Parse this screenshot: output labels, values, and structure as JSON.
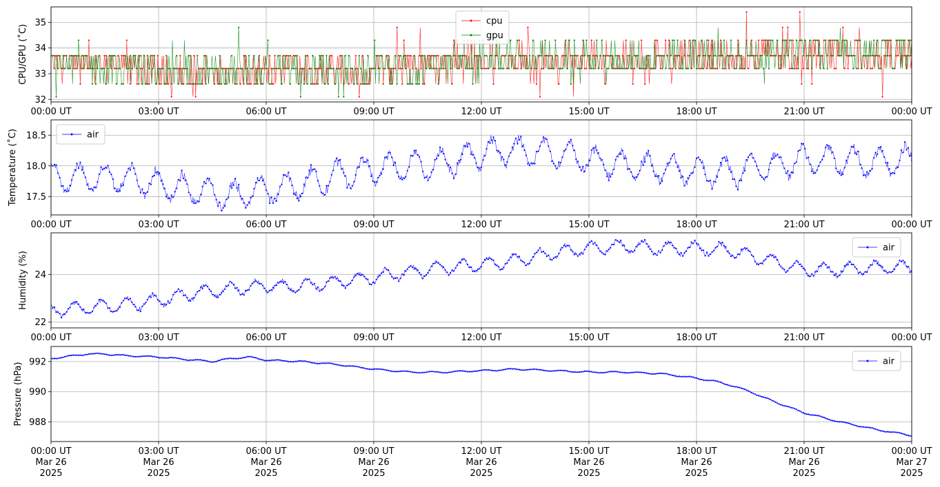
{
  "chart_data": [
    {
      "type": "line",
      "ylabel": "CPU/GPU (˚C)",
      "xlim": [
        "2025-03-26 00:00",
        "2025-03-27 00:00"
      ],
      "ylim": [
        31.9,
        35.6
      ],
      "yticks": [
        32,
        33,
        34,
        35
      ],
      "xtick_labels": [
        "00:00 UT",
        "03:00 UT",
        "06:00 UT",
        "09:00 UT",
        "12:00 UT",
        "15:00 UT",
        "18:00 UT",
        "21:00 UT",
        "00:00 UT"
      ],
      "grid": true,
      "legend_position": "top-center",
      "series": [
        {
          "name": "cpu",
          "color": "#ff0000",
          "x_hours": [
            0,
            1,
            2,
            3,
            4,
            5,
            6,
            7,
            8,
            9,
            10,
            11,
            12,
            13,
            14,
            15,
            16,
            17,
            18,
            19,
            20,
            21,
            22,
            23,
            24
          ],
          "values": [
            33.5,
            33.4,
            33.2,
            33.0,
            32.9,
            33.0,
            33.1,
            33.1,
            33.1,
            33.1,
            33.3,
            33.4,
            33.5,
            33.5,
            33.4,
            33.4,
            33.5,
            33.5,
            33.6,
            33.6,
            33.7,
            33.8,
            33.8,
            33.7,
            33.6
          ],
          "discrete_levels": [
            32.1,
            32.6,
            33.2,
            33.7,
            34.3,
            34.8,
            35.4
          ]
        },
        {
          "name": "gpu",
          "color": "#008000",
          "x_hours": [
            0,
            1,
            2,
            3,
            4,
            5,
            6,
            7,
            8,
            9,
            10,
            11,
            12,
            13,
            14,
            15,
            16,
            17,
            18,
            19,
            20,
            21,
            22,
            23,
            24
          ],
          "values": [
            33.5,
            33.4,
            33.3,
            33.1,
            33.0,
            33.1,
            33.1,
            33.1,
            33.2,
            33.2,
            33.3,
            33.4,
            33.5,
            33.5,
            33.5,
            33.4,
            33.5,
            33.6,
            33.6,
            33.7,
            33.7,
            33.9,
            33.9,
            33.8,
            33.7
          ],
          "discrete_levels": [
            32.1,
            32.6,
            33.2,
            33.7,
            34.3,
            34.8,
            35.4
          ]
        }
      ]
    },
    {
      "type": "line",
      "ylabel": "Temperature (˚C)",
      "xlim": [
        "2025-03-26 00:00",
        "2025-03-27 00:00"
      ],
      "ylim": [
        17.2,
        18.75
      ],
      "yticks": [
        17.5,
        18.0,
        18.5
      ],
      "ytick_labels": [
        "17.5",
        "18.0",
        "18.5"
      ],
      "xtick_labels": [
        "00:00 UT",
        "03:00 UT",
        "06:00 UT",
        "09:00 UT",
        "12:00 UT",
        "15:00 UT",
        "18:00 UT",
        "21:00 UT",
        "00:00 UT"
      ],
      "grid": true,
      "legend_position": "top-left",
      "series": [
        {
          "name": "air",
          "color": "#0000ff",
          "x_hours": [
            0,
            1,
            2,
            3,
            4,
            5,
            6,
            7,
            8,
            9,
            10,
            11,
            12,
            13,
            14,
            15,
            16,
            17,
            18,
            19,
            20,
            21,
            22,
            23,
            24
          ],
          "values": [
            17.8,
            17.8,
            17.8,
            17.7,
            17.6,
            17.5,
            17.6,
            17.7,
            17.85,
            17.95,
            18.0,
            18.05,
            18.2,
            18.25,
            18.2,
            18.1,
            18.0,
            17.95,
            17.9,
            17.9,
            18.0,
            18.1,
            18.1,
            18.05,
            18.1
          ],
          "oscillation_amplitude": 0.25
        }
      ]
    },
    {
      "type": "line",
      "ylabel": "Humidity (%)",
      "xlim": [
        "2025-03-26 00:00",
        "2025-03-27 00:00"
      ],
      "ylim": [
        21.75,
        25.75
      ],
      "yticks": [
        22,
        24
      ],
      "xtick_labels": [
        "00:00 UT",
        "03:00 UT",
        "06:00 UT",
        "09:00 UT",
        "12:00 UT",
        "15:00 UT",
        "18:00 UT",
        "21:00 UT",
        "00:00 UT"
      ],
      "grid": true,
      "legend_position": "top-right",
      "series": [
        {
          "name": "air",
          "color": "#0000ff",
          "x_hours": [
            0,
            1,
            2,
            3,
            4,
            5,
            6,
            7,
            8,
            9,
            10,
            11,
            12,
            13,
            14,
            15,
            16,
            17,
            18,
            19,
            20,
            21,
            22,
            23,
            24
          ],
          "values": [
            22.5,
            22.6,
            22.7,
            22.9,
            23.2,
            23.4,
            23.5,
            23.5,
            23.7,
            23.9,
            24.1,
            24.3,
            24.4,
            24.6,
            24.9,
            25.1,
            25.2,
            25.1,
            25.1,
            25.0,
            24.6,
            24.2,
            24.2,
            24.3,
            24.3
          ],
          "oscillation_amplitude": 0.3
        }
      ]
    },
    {
      "type": "line",
      "ylabel": "Pressure (hPa)",
      "xlim": [
        "2025-03-26 00:00",
        "2025-03-27 00:00"
      ],
      "ylim": [
        986.7,
        993.0
      ],
      "yticks": [
        988,
        990,
        992
      ],
      "xtick_labels": [
        "00:00 UT\nMar 26\n2025",
        "03:00 UT\nMar 26\n2025",
        "06:00 UT\nMar 26\n2025",
        "09:00 UT\nMar 26\n2025",
        "12:00 UT\nMar 26\n2025",
        "15:00 UT\nMar 26\n2025",
        "18:00 UT\nMar 26\n2025",
        "21:00 UT\nMar 26\n2025",
        "00:00 UT\nMar 27\n2025"
      ],
      "grid": true,
      "legend_position": "top-right",
      "series": [
        {
          "name": "air",
          "color": "#0000ff",
          "x_hours": [
            0,
            1,
            1.5,
            2,
            3,
            4,
            4.5,
            5,
            5.5,
            6,
            7,
            8,
            9,
            10,
            11,
            12,
            13,
            14,
            15,
            16,
            17,
            18,
            18.5,
            19,
            19.5,
            20,
            21,
            22,
            23,
            24
          ],
          "values": [
            992.2,
            992.5,
            992.5,
            992.4,
            992.3,
            992.1,
            992.0,
            992.2,
            992.3,
            992.1,
            992.0,
            991.8,
            991.5,
            991.3,
            991.3,
            991.4,
            991.5,
            991.4,
            991.3,
            991.3,
            991.2,
            990.9,
            990.7,
            990.4,
            990.0,
            989.5,
            988.6,
            988.0,
            987.5,
            987.1
          ],
          "oscillation_amplitude": 0.05
        }
      ]
    }
  ]
}
